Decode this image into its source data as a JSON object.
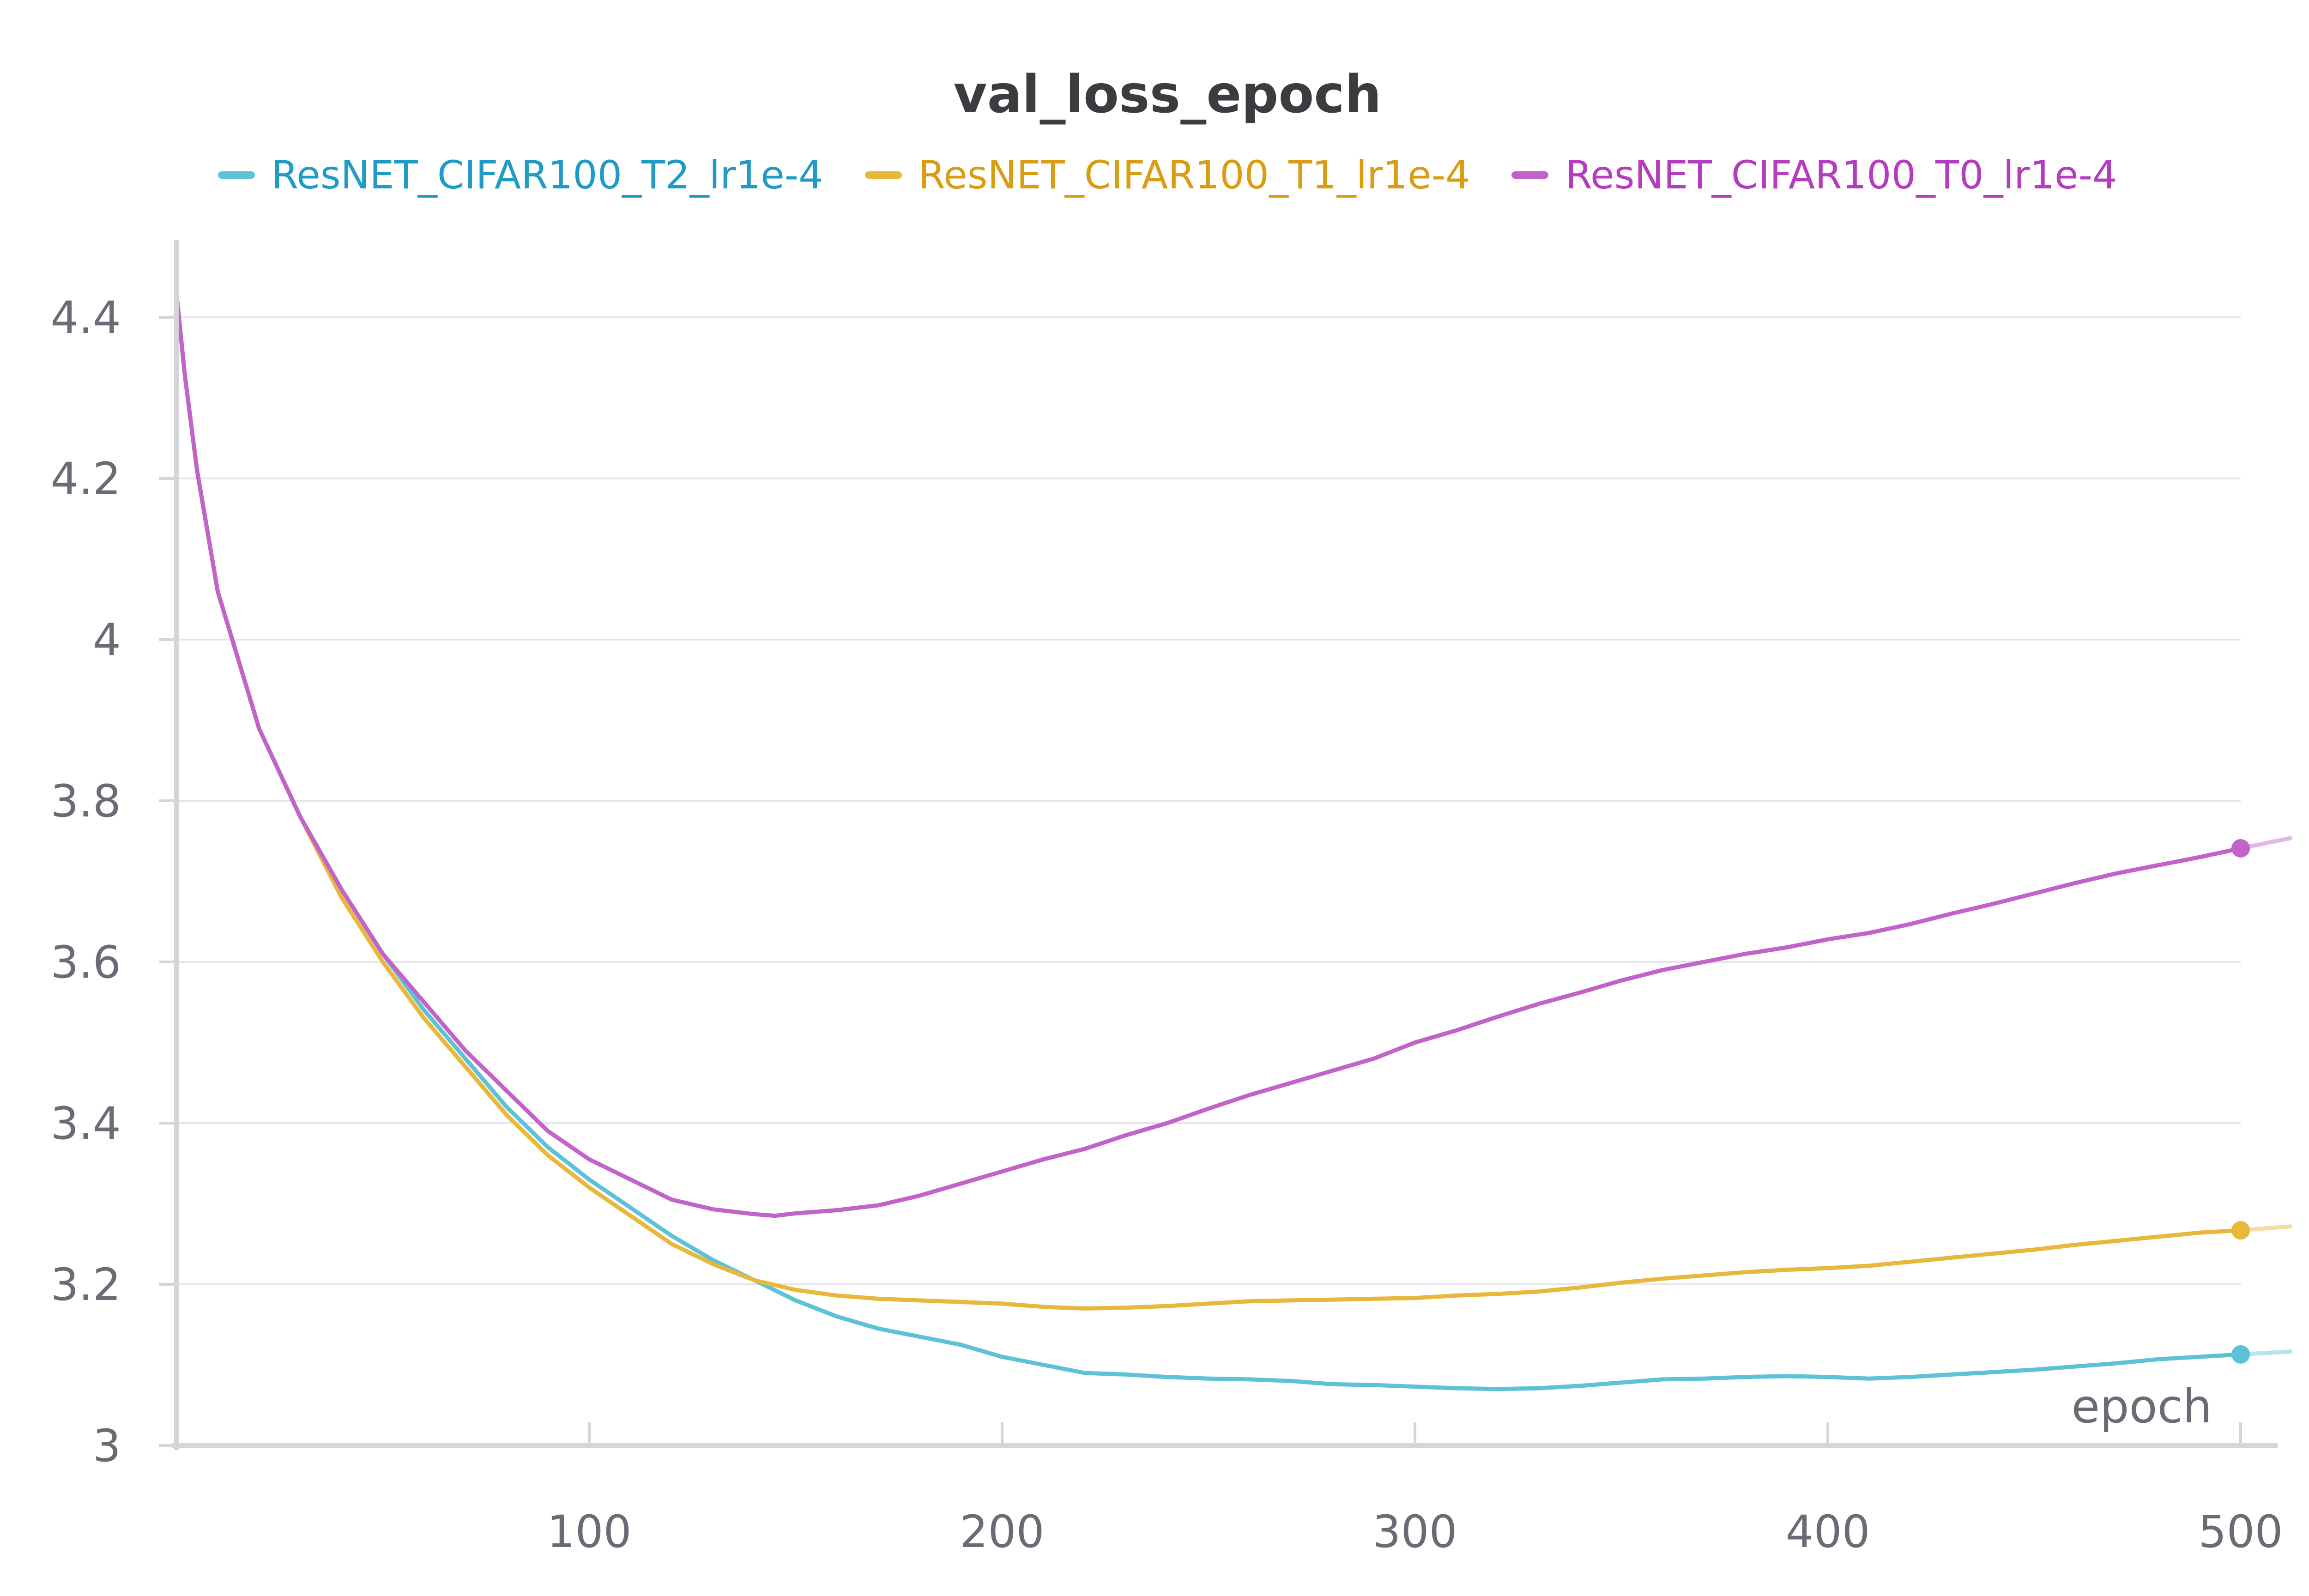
{
  "chart_data": {
    "type": "line",
    "title": "val_loss_epoch",
    "xlabel": "epoch",
    "ylabel": "",
    "xlim": [
      0,
      500
    ],
    "ylim": [
      3.0,
      4.5
    ],
    "xticks": [
      100,
      200,
      300,
      400,
      500
    ],
    "yticks": [
      3,
      3.2,
      3.4,
      3.6,
      3.8,
      4,
      4.2,
      4.4
    ],
    "ytick_labels": [
      "3",
      "3.2",
      "3.4",
      "3.6",
      "3.8",
      "4",
      "4.2",
      "4.4"
    ],
    "grid": true,
    "legend_position": "top",
    "series": [
      {
        "name": "ResNET_CIFAR100_T2_lr1e-4",
        "color": "#5ec2d6",
        "legend_text_color": "#1f9bc6",
        "x": [
          0,
          2,
          5,
          10,
          20,
          30,
          40,
          50,
          60,
          70,
          80,
          90,
          100,
          110,
          120,
          130,
          140,
          150,
          160,
          170,
          180,
          190,
          200,
          210,
          220,
          230,
          240,
          250,
          260,
          270,
          280,
          290,
          300,
          310,
          320,
          330,
          340,
          350,
          360,
          370,
          380,
          390,
          400,
          410,
          420,
          430,
          440,
          450,
          460,
          470,
          480,
          490,
          500
        ],
        "y": [
          4.43,
          4.33,
          4.21,
          4.06,
          3.89,
          3.78,
          3.69,
          3.61,
          3.54,
          3.48,
          3.42,
          3.37,
          3.33,
          3.295,
          3.26,
          3.23,
          3.205,
          3.18,
          3.16,
          3.145,
          3.135,
          3.125,
          3.11,
          3.1,
          3.09,
          3.088,
          3.085,
          3.083,
          3.082,
          3.08,
          3.076,
          3.075,
          3.073,
          3.071,
          3.07,
          3.071,
          3.074,
          3.078,
          3.082,
          3.083,
          3.085,
          3.086,
          3.085,
          3.083,
          3.085,
          3.088,
          3.091,
          3.094,
          3.098,
          3.102,
          3.107,
          3.11,
          3.113
        ]
      },
      {
        "name": "ResNET_CIFAR100_T1_lr1e-4",
        "color": "#e8b83a",
        "legend_text_color": "#d99c12",
        "x": [
          0,
          2,
          5,
          10,
          20,
          30,
          40,
          50,
          60,
          70,
          80,
          90,
          100,
          110,
          120,
          130,
          140,
          150,
          160,
          170,
          180,
          190,
          200,
          210,
          220,
          230,
          240,
          250,
          260,
          270,
          280,
          290,
          300,
          310,
          320,
          330,
          340,
          350,
          360,
          370,
          380,
          390,
          400,
          410,
          420,
          430,
          440,
          450,
          460,
          470,
          480,
          490,
          500
        ],
        "y": [
          4.43,
          4.33,
          4.21,
          4.06,
          3.89,
          3.78,
          3.68,
          3.6,
          3.53,
          3.47,
          3.41,
          3.36,
          3.32,
          3.285,
          3.25,
          3.225,
          3.205,
          3.193,
          3.186,
          3.182,
          3.18,
          3.178,
          3.176,
          3.172,
          3.17,
          3.171,
          3.173,
          3.176,
          3.179,
          3.18,
          3.181,
          3.182,
          3.183,
          3.186,
          3.188,
          3.191,
          3.196,
          3.202,
          3.207,
          3.211,
          3.215,
          3.218,
          3.22,
          3.223,
          3.228,
          3.233,
          3.238,
          3.243,
          3.249,
          3.254,
          3.259,
          3.264,
          3.267
        ]
      },
      {
        "name": "ResNET_CIFAR100_T0_lr1e-4",
        "color": "#c163c8",
        "legend_text_color": "#b53cbf",
        "x": [
          0,
          2,
          5,
          10,
          20,
          30,
          40,
          50,
          60,
          70,
          80,
          90,
          100,
          110,
          120,
          130,
          140,
          145,
          150,
          160,
          170,
          180,
          190,
          200,
          210,
          220,
          230,
          240,
          250,
          260,
          270,
          280,
          290,
          300,
          310,
          320,
          330,
          340,
          350,
          360,
          370,
          380,
          390,
          400,
          410,
          420,
          430,
          440,
          450,
          460,
          470,
          480,
          490,
          500
        ],
        "y": [
          4.43,
          4.33,
          4.21,
          4.06,
          3.89,
          3.78,
          3.69,
          3.61,
          3.55,
          3.49,
          3.44,
          3.39,
          3.355,
          3.33,
          3.305,
          3.293,
          3.287,
          3.285,
          3.288,
          3.292,
          3.298,
          3.31,
          3.325,
          3.34,
          3.355,
          3.368,
          3.385,
          3.4,
          3.418,
          3.435,
          3.45,
          3.465,
          3.48,
          3.5,
          3.515,
          3.532,
          3.548,
          3.562,
          3.577,
          3.59,
          3.6,
          3.61,
          3.618,
          3.628,
          3.636,
          3.647,
          3.66,
          3.672,
          3.685,
          3.698,
          3.71,
          3.72,
          3.73,
          3.741
        ]
      }
    ]
  }
}
